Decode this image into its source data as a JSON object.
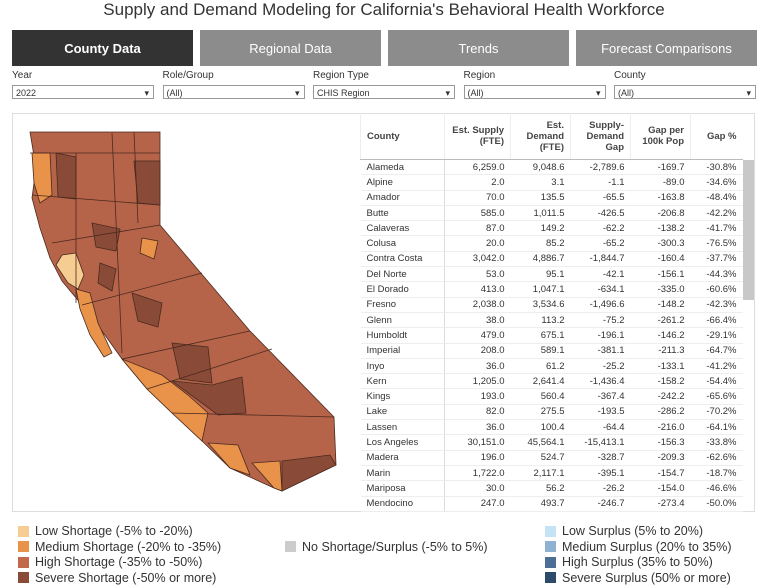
{
  "header": {
    "title": "Supply and Demand Modeling for California's Behavioral Health Workforce"
  },
  "tabs": [
    "County Data",
    "Regional Data",
    "Trends",
    "Forecast Comparisons"
  ],
  "filters": [
    {
      "label": "Year",
      "value": "2022"
    },
    {
      "label": "Role/Group",
      "value": "(All)"
    },
    {
      "label": "Region Type",
      "value": "CHIS Region"
    },
    {
      "label": "Region",
      "value": "(All)"
    },
    {
      "label": "County",
      "value": "(All)"
    }
  ],
  "table": {
    "columns": [
      "County",
      "Est. Supply (FTE)",
      "Est. Demand (FTE)",
      "Supply-Demand Gap",
      "Gap per 100k Pop",
      "Gap %"
    ],
    "rows": [
      [
        "Alameda",
        "6,259.0",
        "9,048.6",
        "-2,789.6",
        "-169.7",
        "-30.8%"
      ],
      [
        "Alpine",
        "2.0",
        "3.1",
        "-1.1",
        "-89.0",
        "-34.6%"
      ],
      [
        "Amador",
        "70.0",
        "135.5",
        "-65.5",
        "-163.8",
        "-48.4%"
      ],
      [
        "Butte",
        "585.0",
        "1,011.5",
        "-426.5",
        "-206.8",
        "-42.2%"
      ],
      [
        "Calaveras",
        "87.0",
        "149.2",
        "-62.2",
        "-138.2",
        "-41.7%"
      ],
      [
        "Colusa",
        "20.0",
        "85.2",
        "-65.2",
        "-300.3",
        "-76.5%"
      ],
      [
        "Contra Costa",
        "3,042.0",
        "4,886.7",
        "-1,844.7",
        "-160.4",
        "-37.7%"
      ],
      [
        "Del Norte",
        "53.0",
        "95.1",
        "-42.1",
        "-156.1",
        "-44.3%"
      ],
      [
        "El Dorado",
        "413.0",
        "1,047.1",
        "-634.1",
        "-335.0",
        "-60.6%"
      ],
      [
        "Fresno",
        "2,038.0",
        "3,534.6",
        "-1,496.6",
        "-148.2",
        "-42.3%"
      ],
      [
        "Glenn",
        "38.0",
        "113.2",
        "-75.2",
        "-261.2",
        "-66.4%"
      ],
      [
        "Humboldt",
        "479.0",
        "675.1",
        "-196.1",
        "-146.2",
        "-29.1%"
      ],
      [
        "Imperial",
        "208.0",
        "589.1",
        "-381.1",
        "-211.3",
        "-64.7%"
      ],
      [
        "Inyo",
        "36.0",
        "61.2",
        "-25.2",
        "-133.1",
        "-41.2%"
      ],
      [
        "Kern",
        "1,205.0",
        "2,641.4",
        "-1,436.4",
        "-158.2",
        "-54.4%"
      ],
      [
        "Kings",
        "193.0",
        "560.4",
        "-367.4",
        "-242.2",
        "-65.6%"
      ],
      [
        "Lake",
        "82.0",
        "275.5",
        "-193.5",
        "-286.2",
        "-70.2%"
      ],
      [
        "Lassen",
        "36.0",
        "100.4",
        "-64.4",
        "-216.0",
        "-64.1%"
      ],
      [
        "Los Angeles",
        "30,151.0",
        "45,564.1",
        "-15,413.1",
        "-156.3",
        "-33.8%"
      ],
      [
        "Madera",
        "196.0",
        "524.7",
        "-328.7",
        "-209.3",
        "-62.6%"
      ],
      [
        "Marin",
        "1,722.0",
        "2,117.1",
        "-395.1",
        "-154.7",
        "-18.7%"
      ],
      [
        "Mariposa",
        "30.0",
        "56.2",
        "-26.2",
        "-154.0",
        "-46.6%"
      ],
      [
        "Mendocino",
        "247.0",
        "493.7",
        "-246.7",
        "-273.4",
        "-50.0%"
      ]
    ]
  },
  "legend": [
    {
      "label": "Low Shortage (-5% to -20%)",
      "color": "#f6cc92"
    },
    {
      "label": "Medium Shortage (-20% to -35%)",
      "color": "#e8924a"
    },
    {
      "label": "High Shortage (-35% to -50%)",
      "color": "#c2694c"
    },
    {
      "label": "Severe Shortage (-50% or more)",
      "color": "#8a4a38"
    },
    {
      "label": "No Shortage/Surplus (-5% to 5%)",
      "color": "#cccccc"
    },
    {
      "label": "Low Surplus (5% to 20%)",
      "color": "#c6e2f5"
    },
    {
      "label": "Medium Surplus (20% to 35%)",
      "color": "#8fb1d2"
    },
    {
      "label": "High Surplus (35% to 50%)",
      "color": "#4e6f95"
    },
    {
      "label": "Severe Surplus (50% or more)",
      "color": "#2e4a6b"
    }
  ]
}
